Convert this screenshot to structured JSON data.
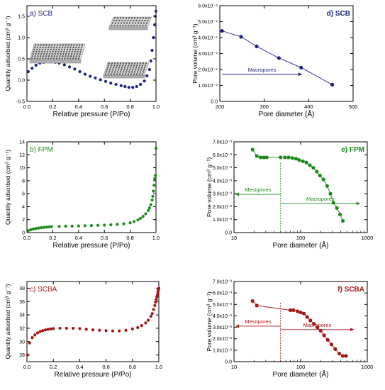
{
  "chart_data": [
    {
      "id": "a",
      "type": "scatter",
      "title": "a) SCB",
      "xlabel": "Relative pressure (P/Po)",
      "ylabel": "Quantity adsorbed (cm³ g⁻¹)",
      "xlim": [
        0.0,
        1.0
      ],
      "ylim": [
        -0.5,
        1.75
      ],
      "xticks": [
        "0.0",
        "0.2",
        "0.4",
        "0.6",
        "0.8",
        "1.0"
      ],
      "yticks": [
        "-0.5",
        "0.0",
        "0.5",
        "1.0",
        "1.5"
      ],
      "color": "#1a237e",
      "x": [
        0.01,
        0.04,
        0.07,
        0.1,
        0.13,
        0.16,
        0.19,
        0.22,
        0.25,
        0.29,
        0.33,
        0.37,
        0.41,
        0.45,
        0.49,
        0.53,
        0.57,
        0.61,
        0.65,
        0.69,
        0.73,
        0.76,
        0.79,
        0.82,
        0.85,
        0.88,
        0.91,
        0.93,
        0.95,
        0.96,
        0.97,
        0.98,
        0.99,
        0.995,
        1.0
      ],
      "y": [
        0.2,
        0.28,
        0.35,
        0.4,
        0.42,
        0.43,
        0.43,
        0.42,
        0.4,
        0.36,
        0.31,
        0.26,
        0.2,
        0.14,
        0.09,
        0.05,
        0.01,
        -0.03,
        -0.07,
        -0.1,
        -0.13,
        -0.15,
        -0.17,
        -0.17,
        -0.15,
        -0.1,
        -0.02,
        0.1,
        0.25,
        0.45,
        0.7,
        1.0,
        1.3,
        1.5,
        1.62
      ]
    },
    {
      "id": "b",
      "type": "scatter",
      "title": "b) FPM",
      "xlabel": "Relative pressure (P/Po)",
      "ylabel": "Quantity adsorbed (cm³ g⁻¹)",
      "xlim": [
        0.0,
        1.0
      ],
      "ylim": [
        0,
        14
      ],
      "xticks": [
        "0.0",
        "0.2",
        "0.4",
        "0.6",
        "0.8",
        "1.0"
      ],
      "yticks": [
        "0",
        "2",
        "4",
        "6",
        "8",
        "10",
        "12",
        "14"
      ],
      "color": "#1a8a1a",
      "x": [
        0.01,
        0.03,
        0.05,
        0.07,
        0.09,
        0.11,
        0.13,
        0.15,
        0.17,
        0.19,
        0.25,
        0.3,
        0.35,
        0.4,
        0.45,
        0.5,
        0.55,
        0.6,
        0.65,
        0.7,
        0.75,
        0.8,
        0.83,
        0.86,
        0.88,
        0.9,
        0.92,
        0.94,
        0.95,
        0.96,
        0.97,
        0.975,
        0.98,
        0.985,
        0.99,
        0.995,
        1.0
      ],
      "y": [
        0.3,
        0.45,
        0.55,
        0.63,
        0.7,
        0.76,
        0.8,
        0.84,
        0.87,
        0.9,
        0.95,
        0.98,
        1.0,
        1.03,
        1.06,
        1.08,
        1.12,
        1.15,
        1.2,
        1.27,
        1.35,
        1.5,
        1.7,
        1.95,
        2.2,
        2.5,
        2.9,
        3.4,
        3.8,
        4.3,
        5.0,
        5.6,
        6.4,
        7.3,
        8.3,
        8.8,
        13.0
      ]
    },
    {
      "id": "c",
      "type": "scatter",
      "title": "c) SCBA",
      "xlabel": "Relative pressure (P/Po)",
      "ylabel": "Quantity adsorbed (cm³ g⁻¹)",
      "xlim": [
        0.0,
        1.0
      ],
      "ylim": [
        27,
        39
      ],
      "xticks": [
        "0.0",
        "0.2",
        "0.4",
        "0.6",
        "0.8",
        "1.0"
      ],
      "yticks": [
        "28",
        "30",
        "32",
        "34",
        "36",
        "38"
      ],
      "color": "#a31515",
      "x": [
        0.005,
        0.02,
        0.04,
        0.06,
        0.08,
        0.1,
        0.12,
        0.14,
        0.16,
        0.18,
        0.2,
        0.25,
        0.3,
        0.35,
        0.4,
        0.45,
        0.5,
        0.55,
        0.6,
        0.65,
        0.7,
        0.75,
        0.8,
        0.84,
        0.87,
        0.9,
        0.92,
        0.94,
        0.95,
        0.96,
        0.97,
        0.975,
        0.98,
        0.985,
        0.99,
        0.993,
        0.996,
        0.998,
        1.0
      ],
      "y": [
        28.0,
        29.8,
        30.6,
        31.0,
        31.3,
        31.5,
        31.65,
        31.75,
        31.85,
        31.9,
        31.95,
        32.0,
        32.0,
        32.0,
        31.95,
        31.85,
        31.75,
        31.7,
        31.65,
        31.6,
        31.6,
        31.7,
        31.9,
        32.1,
        32.4,
        32.8,
        33.2,
        33.8,
        34.2,
        34.8,
        35.4,
        35.9,
        36.3,
        36.7,
        37.0,
        37.4,
        37.7,
        37.9,
        38.0
      ]
    },
    {
      "id": "d",
      "type": "line",
      "title": "d) SCB",
      "xlabel": "Pore diameter (Å)",
      "ylabel": "Pore volume (cm³ g⁻¹)",
      "xscale": "linear",
      "xlim": [
        200,
        500
      ],
      "ylim": [
        0.0,
        0.0006
      ],
      "xticks": [
        "200",
        "300",
        "400",
        "500"
      ],
      "yticks": [
        "0.0",
        "1.0x10⁻⁴",
        "2.0x10⁻⁴",
        "3.0x10⁻⁴",
        "4.0x10⁻⁴",
        "5.0x10⁻⁴",
        "6.0x10⁻⁴"
      ],
      "color": "#1a237e",
      "x": [
        205,
        248,
        283,
        333,
        383,
        453
      ],
      "y": [
        0.000442,
        0.000405,
        0.000345,
        0.000272,
        0.000212,
        0.000105
      ],
      "annotations": [
        {
          "text": "Macropores",
          "from": 205,
          "to": 385,
          "y": 0.00017
        }
      ]
    },
    {
      "id": "e",
      "type": "line",
      "title": "e) FPM",
      "xlabel": "Pore diameter (Å)",
      "ylabel": "Pore volume (cm³ g⁻¹)",
      "xscale": "log",
      "xlim": [
        10,
        1000
      ],
      "ylim": [
        0.0,
        0.007
      ],
      "xticks": [
        "10",
        "100",
        "1000"
      ],
      "yticks": [
        "0.0",
        "1.0x10⁻³",
        "2.0x10⁻³",
        "3.0x10⁻³",
        "4.0x10⁻³",
        "5.0x10⁻³",
        "6.0x10⁻³",
        "7.0x10⁻³"
      ],
      "color": "#1a8a1a",
      "x": [
        19,
        22,
        25,
        28,
        31,
        50,
        58,
        66,
        75,
        85,
        95,
        108,
        122,
        138,
        155,
        175,
        195,
        220,
        250,
        280,
        310,
        350,
        390,
        430
      ],
      "y": [
        0.0064,
        0.0059,
        0.0058,
        0.0058,
        0.0058,
        0.0058,
        0.0058,
        0.0058,
        0.00575,
        0.0057,
        0.0056,
        0.0055,
        0.0054,
        0.0052,
        0.005,
        0.0047,
        0.0044,
        0.0041,
        0.0036,
        0.003,
        0.0023,
        0.0019,
        0.0014,
        0.0009
      ],
      "divider_x": 50,
      "annotations": [
        {
          "text": "Mesopores",
          "from": 50,
          "to": 10.5,
          "y": 0.00295
        },
        {
          "text": "Macropores",
          "from": 50,
          "to": 780,
          "y": 0.00225
        }
      ]
    },
    {
      "id": "f",
      "type": "line",
      "title": "f) SCBA",
      "xlabel": "Pore diameter (Å)",
      "ylabel": "Pore volume (cm³ g⁻¹)",
      "xscale": "log",
      "xlim": [
        10,
        1000
      ],
      "ylim": [
        0.0,
        0.007
      ],
      "xticks": [
        "10",
        "100",
        "1000"
      ],
      "yticks": [
        "0.0",
        "1.0x10⁻³",
        "2.0x10⁻³",
        "3.0x10⁻³",
        "4.0x10⁻³",
        "5.0x10⁻³",
        "6.0x10⁻³",
        "7.0x10⁻³"
      ],
      "color": "#a31515",
      "x": [
        19,
        22,
        70,
        78,
        90,
        100,
        112,
        125,
        140,
        158,
        178,
        200,
        225,
        255,
        290,
        330,
        380,
        430,
        480
      ],
      "y": [
        0.0053,
        0.0049,
        0.0045,
        0.0045,
        0.0044,
        0.0043,
        0.0042,
        0.0039,
        0.0036,
        0.0033,
        0.003,
        0.0027,
        0.0023,
        0.0019,
        0.0015,
        0.0011,
        0.0007,
        0.0005,
        0.0005
      ],
      "divider_x": 50,
      "annotations": [
        {
          "text": "Mesopores",
          "from": 50,
          "to": 10.5,
          "y": 0.0031
        },
        {
          "text": "Macropores",
          "from": 50,
          "to": 630,
          "y": 0.0028
        }
      ]
    }
  ]
}
